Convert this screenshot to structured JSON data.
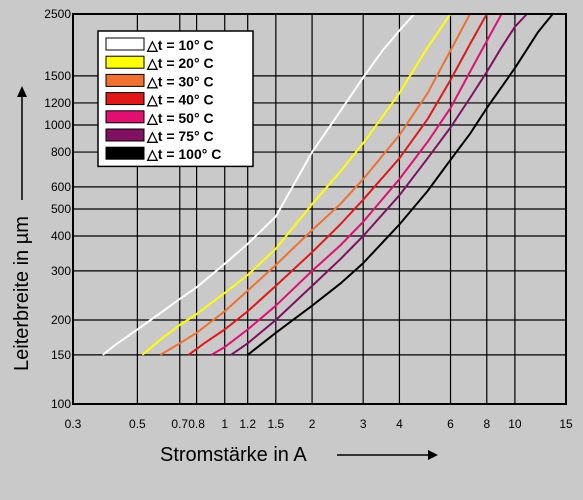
{
  "chart_data": {
    "type": "line",
    "xlabel": "Stromstärke in A",
    "ylabel": "Leiterbreite in µm",
    "x_scale": "log",
    "y_scale": "log",
    "xlim": [
      0.3,
      15
    ],
    "ylim": [
      100,
      2500
    ],
    "grid": true,
    "legend_placement": "top-left",
    "x_ticks": [
      "0.3",
      "0.5",
      "0.7",
      "0.8",
      "1",
      "1.2",
      "1.5",
      "2",
      "3",
      "4",
      "6",
      "8",
      "10",
      "15"
    ],
    "x_tick_values": [
      0.3,
      0.5,
      0.7,
      0.8,
      1,
      1.2,
      1.5,
      2,
      3,
      4,
      6,
      8,
      10,
      15
    ],
    "y_ticks": [
      "100",
      "150",
      "200",
      "300",
      "400",
      "500",
      "600",
      "800",
      "1000",
      "1200",
      "1500",
      "2500"
    ],
    "y_tick_values": [
      100,
      150,
      200,
      300,
      400,
      500,
      600,
      800,
      1000,
      1200,
      1500,
      2500
    ],
    "series": [
      {
        "name": "△t =   10° C",
        "color": "#ffffff",
        "x": [
          0.38,
          0.42,
          0.5,
          0.6,
          0.7,
          0.8,
          1.0,
          1.2,
          1.5,
          2.0,
          2.5,
          3.0,
          3.5,
          4.0,
          4.5
        ],
        "y": [
          150,
          163,
          185,
          212,
          238,
          262,
          318,
          375,
          470,
          800,
          1120,
          1480,
          1850,
          2180,
          2500
        ]
      },
      {
        "name": "△t =   20° C",
        "color": "#ffff00",
        "x": [
          0.52,
          0.6,
          0.7,
          0.8,
          1.0,
          1.2,
          1.5,
          2.0,
          2.5,
          3.0,
          4.0,
          5.0,
          6.0
        ],
        "y": [
          150,
          170,
          192,
          210,
          250,
          290,
          360,
          520,
          680,
          860,
          1300,
          1900,
          2500
        ]
      },
      {
        "name": "△t =   30° C",
        "color": "#f07030",
        "x": [
          0.6,
          0.7,
          0.8,
          1.0,
          1.2,
          1.5,
          2.0,
          2.5,
          3.0,
          4.0,
          5.0,
          6.0,
          7.0
        ],
        "y": [
          150,
          165,
          180,
          215,
          255,
          315,
          420,
          520,
          640,
          920,
          1300,
          1850,
          2500
        ]
      },
      {
        "name": "△t =   40° C",
        "color": "#e01818",
        "x": [
          0.75,
          0.85,
          1.0,
          1.2,
          1.5,
          2.0,
          2.5,
          3.0,
          4.0,
          5.0,
          6.0,
          7.0,
          8.0
        ],
        "y": [
          150,
          165,
          185,
          215,
          265,
          350,
          440,
          540,
          760,
          1050,
          1450,
          1950,
          2500
        ]
      },
      {
        "name": "△t =   50° C",
        "color": "#e01070",
        "x": [
          0.9,
          1.0,
          1.2,
          1.5,
          2.0,
          2.5,
          3.0,
          4.0,
          5.0,
          6.0,
          7.0,
          8.0,
          9.0
        ],
        "y": [
          150,
          160,
          185,
          225,
          300,
          370,
          450,
          640,
          870,
          1150,
          1550,
          2000,
          2500
        ]
      },
      {
        "name": "△t =   75° C",
        "color": "#801060",
        "x": [
          1.05,
          1.2,
          1.5,
          2.0,
          2.5,
          3.0,
          4.0,
          5.0,
          6.0,
          7.0,
          8.0,
          9.0,
          10.0,
          11.0
        ],
        "y": [
          150,
          165,
          200,
          265,
          330,
          400,
          560,
          760,
          980,
          1250,
          1550,
          1900,
          2250,
          2500
        ]
      },
      {
        "name": "△t = 100° C",
        "color": "#000000",
        "x": [
          1.2,
          1.5,
          2.0,
          2.5,
          3.0,
          4.0,
          5.0,
          6.0,
          7.0,
          8.0,
          10.0,
          12.0,
          13.5
        ],
        "y": [
          150,
          180,
          225,
          270,
          320,
          440,
          580,
          750,
          930,
          1150,
          1600,
          2150,
          2500
        ]
      }
    ]
  }
}
